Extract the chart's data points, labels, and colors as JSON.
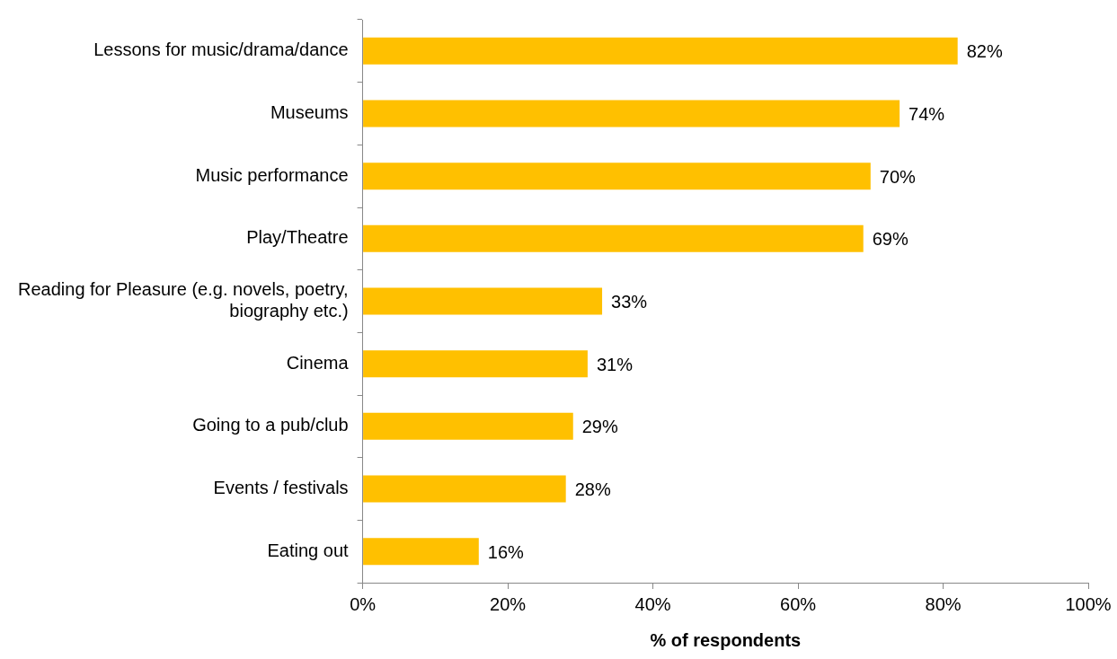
{
  "chart_data": {
    "type": "bar",
    "orientation": "horizontal",
    "xlabel": "% of respondents",
    "categories": [
      "Lessons for music/drama/dance",
      "Museums",
      "Music performance",
      "Play/Theatre",
      "Reading for Pleasure (e.g. novels, poetry, biography etc.)",
      "Cinema",
      "Going to a pub/club",
      "Events / festivals",
      "Eating out"
    ],
    "values": [
      82,
      74,
      70,
      69,
      33,
      31,
      29,
      28,
      16
    ],
    "value_labels": [
      "82%",
      "74%",
      "70%",
      "69%",
      "33%",
      "31%",
      "29%",
      "28%",
      "16%"
    ],
    "color": "#ffc000",
    "xlim": [
      0,
      100
    ],
    "xticks": [
      {
        "value": 0,
        "label": "0%"
      },
      {
        "value": 20,
        "label": "20%"
      },
      {
        "value": 40,
        "label": "40%"
      },
      {
        "value": 60,
        "label": "60%"
      },
      {
        "value": 80,
        "label": "80%"
      },
      {
        "value": 100,
        "label": "100%"
      }
    ]
  }
}
